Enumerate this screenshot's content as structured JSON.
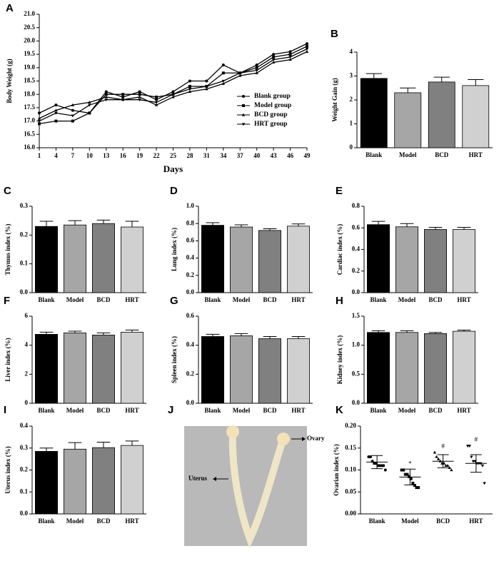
{
  "chart_data": [
    {
      "type": "line",
      "panel": "A",
      "xlabel": "Days",
      "ylabel": "Body Weight (g)",
      "x": [
        1,
        4,
        7,
        10,
        13,
        16,
        19,
        22,
        25,
        28,
        31,
        34,
        37,
        40,
        43,
        46,
        49
      ],
      "xlim": [
        1,
        49
      ],
      "xticks": [
        1,
        4,
        7,
        10,
        13,
        16,
        19,
        22,
        25,
        28,
        31,
        34,
        37,
        40,
        43,
        46,
        49
      ],
      "ylim": [
        16,
        21
      ],
      "yticks": [
        {
          "value": 16,
          "label": "16.0"
        },
        16.5,
        {
          "value": 17,
          "label": "17.0"
        },
        17.5,
        {
          "value": 18,
          "label": "18.0"
        },
        18.5,
        {
          "value": 19,
          "label": "19.0"
        },
        19.5,
        {
          "value": 20,
          "label": "20.0"
        },
        20.5,
        {
          "value": 21,
          "label": "21.0"
        }
      ],
      "series": [
        {
          "name": "Blank group",
          "marker": "circle",
          "color": "#000000",
          "values": [
            17.3,
            17.6,
            17.4,
            17.3,
            18.1,
            17.9,
            18.1,
            17.8,
            18.1,
            18.5,
            18.5,
            19.1,
            18.8,
            19.1,
            19.5,
            19.6,
            19.9
          ]
        },
        {
          "name": "Model group",
          "marker": "square",
          "color": "#000000",
          "values": [
            16.9,
            17.0,
            17.0,
            17.3,
            18.0,
            18.0,
            18.0,
            17.9,
            18.0,
            18.3,
            18.3,
            18.8,
            18.8,
            19.0,
            19.4,
            19.5,
            19.8
          ]
        },
        {
          "name": "BCD group",
          "marker": "triangle",
          "color": "#000000",
          "values": [
            17.1,
            17.4,
            17.6,
            17.7,
            17.9,
            17.8,
            17.9,
            17.6,
            17.9,
            18.1,
            18.2,
            18.4,
            18.7,
            18.8,
            19.2,
            19.3,
            19.6
          ]
        },
        {
          "name": "HRT group",
          "marker": "triangle-down",
          "color": "#000000",
          "values": [
            17.0,
            17.3,
            17.2,
            17.6,
            17.8,
            17.8,
            17.8,
            17.7,
            18.0,
            18.2,
            18.3,
            18.5,
            18.8,
            18.9,
            19.3,
            19.4,
            19.7
          ]
        }
      ]
    },
    {
      "type": "bar",
      "panel": "B",
      "ylabel": "Weight Gain (g)",
      "categories": [
        "Blank",
        "Model",
        "BCD",
        "HRT"
      ],
      "values": [
        2.9,
        2.3,
        2.75,
        2.6
      ],
      "errors": [
        0.2,
        0.2,
        0.2,
        0.25
      ],
      "colors": [
        "#000000",
        "#a6a6a6",
        "#808080",
        "#d0d0d0"
      ],
      "ylim": [
        0,
        4
      ],
      "yticks": [
        0,
        1,
        2,
        3,
        4
      ]
    },
    {
      "type": "bar",
      "panel": "C",
      "ylabel": "Thymus index (%)",
      "categories": [
        "Blank",
        "Model",
        "BCD",
        "HRT"
      ],
      "values": [
        0.23,
        0.235,
        0.24,
        0.228
      ],
      "errors": [
        0.018,
        0.015,
        0.012,
        0.02
      ],
      "colors": [
        "#000000",
        "#a6a6a6",
        "#808080",
        "#d0d0d0"
      ],
      "ylim": [
        0,
        0.3
      ],
      "yticks": [
        {
          "value": 0,
          "label": "0.0"
        },
        0.1,
        0.2,
        0.3
      ]
    },
    {
      "type": "bar",
      "panel": "D",
      "ylabel": "Lung index (%)",
      "categories": [
        "Blank",
        "Model",
        "BCD",
        "HRT"
      ],
      "values": [
        0.78,
        0.76,
        0.72,
        0.77
      ],
      "errors": [
        0.03,
        0.025,
        0.02,
        0.025
      ],
      "colors": [
        "#000000",
        "#a6a6a6",
        "#808080",
        "#d0d0d0"
      ],
      "ylim": [
        0,
        1
      ],
      "yticks": [
        {
          "value": 0,
          "label": "0.0"
        },
        0.2,
        0.4,
        0.6,
        0.8,
        {
          "value": 1,
          "label": "1.0"
        }
      ]
    },
    {
      "type": "bar",
      "panel": "E",
      "ylabel": "Cardiac index (%)",
      "categories": [
        "Blank",
        "Model",
        "BCD",
        "HRT"
      ],
      "values": [
        0.63,
        0.61,
        0.585,
        0.585
      ],
      "errors": [
        0.03,
        0.03,
        0.02,
        0.02
      ],
      "colors": [
        "#000000",
        "#a6a6a6",
        "#808080",
        "#d0d0d0"
      ],
      "ylim": [
        0,
        0.8
      ],
      "yticks": [
        {
          "value": 0,
          "label": "0.0"
        },
        0.2,
        0.4,
        0.6,
        0.8
      ]
    },
    {
      "type": "bar",
      "panel": "F",
      "ylabel": "Liver index (%)",
      "categories": [
        "Blank",
        "Model",
        "BCD",
        "HRT"
      ],
      "values": [
        4.75,
        4.85,
        4.7,
        4.9
      ],
      "errors": [
        0.15,
        0.12,
        0.15,
        0.15
      ],
      "colors": [
        "#000000",
        "#a6a6a6",
        "#808080",
        "#d0d0d0"
      ],
      "ylim": [
        0,
        6
      ],
      "yticks": [
        0,
        2,
        4,
        6
      ]
    },
    {
      "type": "bar",
      "panel": "G",
      "ylabel": "Spleen index (%)",
      "categories": [
        "Blank",
        "Model",
        "BCD",
        "HRT"
      ],
      "values": [
        0.46,
        0.465,
        0.445,
        0.445
      ],
      "errors": [
        0.015,
        0.015,
        0.015,
        0.015
      ],
      "colors": [
        "#000000",
        "#a6a6a6",
        "#808080",
        "#d0d0d0"
      ],
      "ylim": [
        0,
        0.6
      ],
      "yticks": [
        {
          "value": 0,
          "label": "0.0"
        },
        0.2,
        0.4,
        0.6
      ]
    },
    {
      "type": "bar",
      "panel": "H",
      "ylabel": "Kidney index (%)",
      "categories": [
        "Blank",
        "Model",
        "BCD",
        "HRT"
      ],
      "values": [
        1.22,
        1.22,
        1.2,
        1.24
      ],
      "errors": [
        0.03,
        0.03,
        0.02,
        0.02
      ],
      "colors": [
        "#000000",
        "#a6a6a6",
        "#808080",
        "#d0d0d0"
      ],
      "ylim": [
        0,
        1.5
      ],
      "yticks": [
        {
          "value": 0,
          "label": "0.0"
        },
        0.5,
        {
          "value": 1,
          "label": "1.0"
        },
        1.5
      ]
    },
    {
      "type": "bar",
      "panel": "I",
      "ylabel": "Uterus index (%)",
      "categories": [
        "Blank",
        "Model",
        "BCD",
        "HRT"
      ],
      "values": [
        0.285,
        0.295,
        0.302,
        0.312
      ],
      "errors": [
        0.015,
        0.03,
        0.025,
        0.02
      ],
      "colors": [
        "#000000",
        "#a6a6a6",
        "#808080",
        "#d0d0d0"
      ],
      "ylim": [
        0,
        0.4
      ],
      "yticks": [
        {
          "value": 0,
          "label": "0.0"
        },
        0.1,
        0.2,
        0.3,
        0.4
      ]
    },
    {
      "type": "image",
      "panel": "J",
      "annotations": [
        "Uterus",
        "Ovary"
      ]
    },
    {
      "type": "dotplot",
      "panel": "K",
      "ylabel": "Ovarian index (%)",
      "categories": [
        "Blank",
        "Model",
        "BCD",
        "HRT"
      ],
      "markers": [
        "circle",
        "square",
        "triangle",
        "triangle-down"
      ],
      "points": [
        [
          0.13,
          0.13,
          0.12,
          0.115,
          0.115,
          0.11,
          0.11,
          0.11,
          0.11,
          0.1
        ],
        [
          0.1,
          0.1,
          0.09,
          0.09,
          0.085,
          0.08,
          0.07,
          0.065,
          0.06,
          0.06
        ],
        [
          0.14,
          0.13,
          0.125,
          0.12,
          0.115,
          0.115,
          0.11,
          0.11,
          0.105,
          0.1
        ],
        [
          0.155,
          0.155,
          0.13,
          0.12,
          0.12,
          0.115,
          0.115,
          0.115,
          0.11,
          0.07
        ]
      ],
      "means": [
        0.118,
        0.084,
        0.12,
        0.115
      ],
      "sds": [
        0.015,
        0.018,
        0.015,
        0.02
      ],
      "annotations": [
        null,
        "*",
        "#",
        "#"
      ],
      "ylim": [
        0,
        0.2
      ],
      "yticks": [
        {
          "value": 0,
          "label": "0.00"
        },
        0.05,
        {
          "value": 0.1,
          "label": "0.10"
        },
        0.15,
        {
          "value": 0.2,
          "label": "0.20"
        }
      ]
    }
  ]
}
